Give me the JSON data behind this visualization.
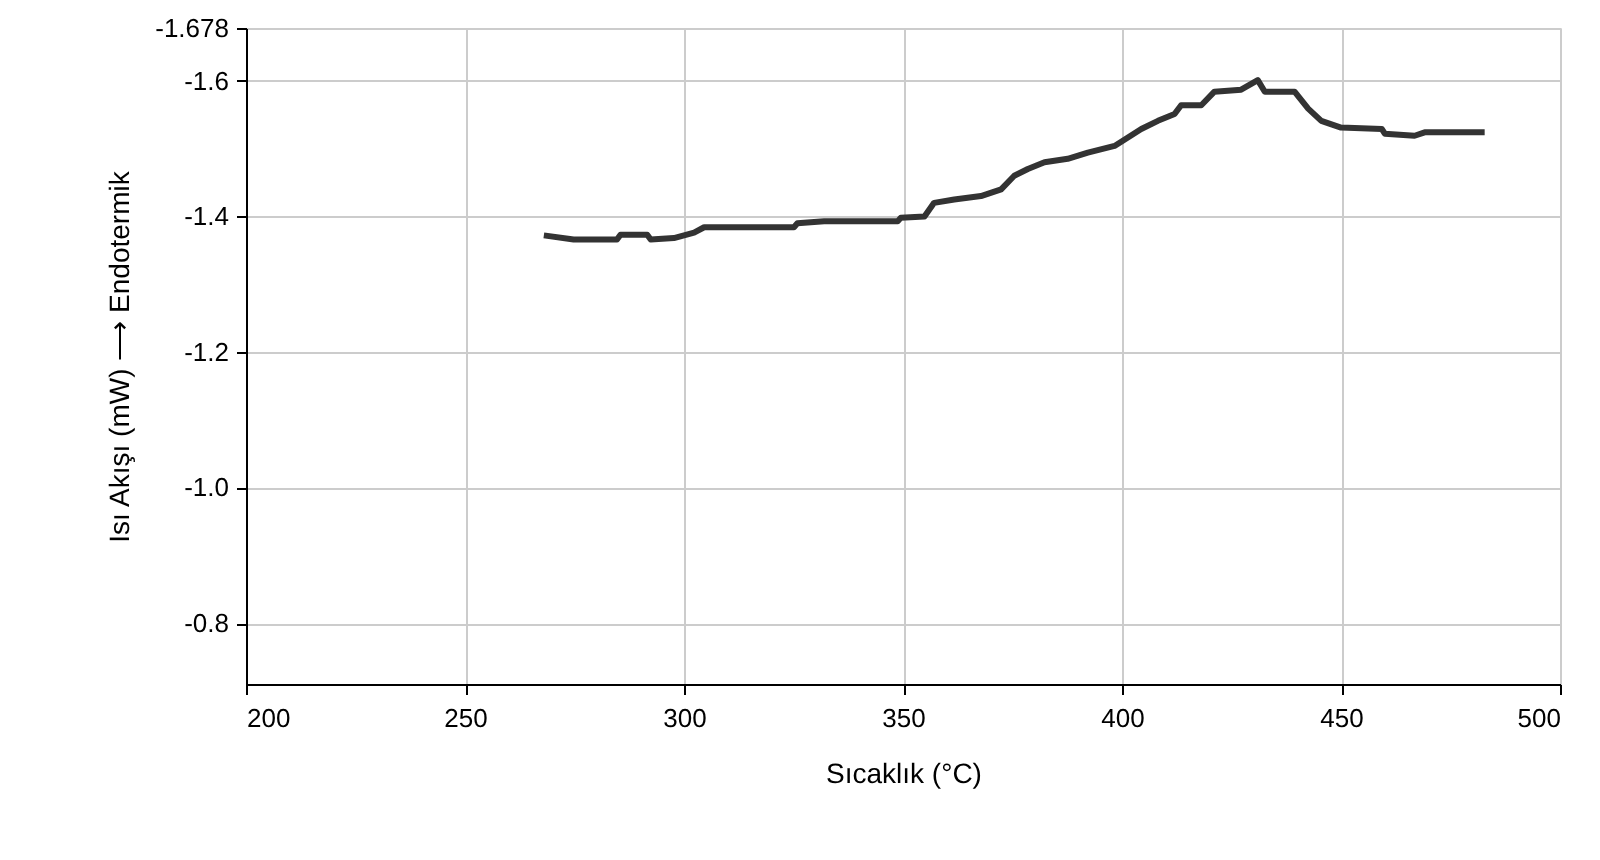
{
  "chart_data": {
    "type": "line",
    "xlabel": "Sıcaklık (°C)",
    "ylabel": "Isı Akışı (mW) ⟶ Endotermik",
    "xlim": [
      200,
      500
    ],
    "xticks": [
      200,
      250,
      300,
      350,
      400,
      450,
      500
    ],
    "ylim": [
      -0.71,
      -1.678
    ],
    "yticks": [
      {
        "value": -1.678,
        "label": "-1.678"
      },
      -1.6,
      -1.4,
      -1.2,
      {
        "value": -1.0,
        "label": "-1.0"
      },
      -0.8
    ],
    "grid": true,
    "marker": "none",
    "line_style": "solid",
    "series": [
      {
        "color": "#333333",
        "x": [
          268.0,
          274.8,
          284.7,
          285.5,
          291.6,
          292.4,
          297.7,
          302.3,
          304.6,
          325.1,
          325.9,
          332.0,
          348.8,
          349.5,
          354.9,
          357.1,
          361.7,
          367.8,
          372.4,
          375.4,
          378.5,
          382.3,
          387.6,
          392.2,
          398.3,
          404.4,
          408.2,
          412.0,
          413.5,
          418.1,
          421.1,
          427.2,
          431.0,
          432.6,
          436.4,
          439.4,
          442.5,
          445.5,
          450.0,
          459.3,
          460.0,
          466.8,
          469.1,
          482.8
        ],
        "values": [
          -1.372,
          -1.366,
          -1.366,
          -1.373,
          -1.373,
          -1.366,
          -1.368,
          -1.376,
          -1.384,
          -1.384,
          -1.39,
          -1.393,
          -1.393,
          -1.398,
          -1.4,
          -1.42,
          -1.425,
          -1.43,
          -1.44,
          -1.46,
          -1.47,
          -1.48,
          -1.485,
          -1.494,
          -1.504,
          -1.529,
          -1.541,
          -1.551,
          -1.564,
          -1.564,
          -1.584,
          -1.587,
          -1.601,
          -1.584,
          -1.584,
          -1.584,
          -1.559,
          -1.541,
          -1.531,
          -1.529,
          -1.522,
          -1.519,
          -1.524,
          -1.524
        ]
      }
    ]
  }
}
